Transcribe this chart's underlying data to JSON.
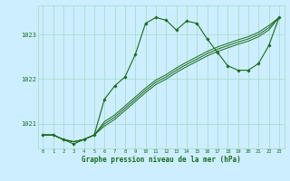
{
  "background_color": "#cceeff",
  "grid_color": "#aaddcc",
  "line_color": "#1a6b1a",
  "xlabel": "Graphe pression niveau de la mer (hPa)",
  "xlabel_color": "#1a6b1a",
  "ylabel_ticks": [
    1021,
    1022,
    1023
  ],
  "xlim": [
    -0.5,
    23.5
  ],
  "ylim": [
    1020.45,
    1023.65
  ],
  "x_ticks": [
    0,
    1,
    2,
    3,
    4,
    5,
    6,
    7,
    8,
    9,
    10,
    11,
    12,
    13,
    14,
    15,
    16,
    17,
    18,
    19,
    20,
    21,
    22,
    23
  ],
  "line1_x": [
    0,
    1,
    2,
    3,
    4,
    5,
    6,
    7,
    8,
    9,
    10,
    11,
    12,
    13,
    14,
    15,
    16,
    17,
    18,
    19,
    20,
    21,
    22,
    23
  ],
  "line1_y": [
    1020.75,
    1020.75,
    1020.65,
    1020.55,
    1020.65,
    1020.75,
    1021.55,
    1021.85,
    1022.05,
    1022.55,
    1023.25,
    1023.38,
    1023.32,
    1023.1,
    1023.3,
    1023.25,
    1022.9,
    1022.6,
    1022.3,
    1022.2,
    1022.2,
    1022.35,
    1022.75,
    1023.38
  ],
  "line2_x": [
    0,
    1,
    2,
    3,
    4,
    5,
    6,
    7,
    8,
    9,
    10,
    11,
    12,
    13,
    14,
    15,
    16,
    17,
    18,
    19,
    20,
    21,
    22,
    23
  ],
  "line2_y": [
    1020.75,
    1020.75,
    1020.65,
    1020.6,
    1020.65,
    1020.75,
    1020.95,
    1021.1,
    1021.3,
    1021.5,
    1021.7,
    1021.88,
    1022.0,
    1022.15,
    1022.28,
    1022.4,
    1022.52,
    1022.62,
    1022.7,
    1022.78,
    1022.85,
    1022.95,
    1023.1,
    1023.38
  ],
  "line3_x": [
    0,
    1,
    2,
    3,
    4,
    5,
    6,
    7,
    8,
    9,
    10,
    11,
    12,
    13,
    14,
    15,
    16,
    17,
    18,
    19,
    20,
    21,
    22,
    23
  ],
  "line3_y": [
    1020.75,
    1020.75,
    1020.65,
    1020.6,
    1020.65,
    1020.75,
    1021.0,
    1021.15,
    1021.35,
    1021.55,
    1021.75,
    1021.93,
    1022.05,
    1022.2,
    1022.33,
    1022.45,
    1022.57,
    1022.67,
    1022.75,
    1022.83,
    1022.9,
    1023.0,
    1023.15,
    1023.38
  ],
  "line4_x": [
    0,
    1,
    2,
    3,
    4,
    5,
    6,
    7,
    8,
    9,
    10,
    11,
    12,
    13,
    14,
    15,
    16,
    17,
    18,
    19,
    20,
    21,
    22,
    23
  ],
  "line4_y": [
    1020.75,
    1020.75,
    1020.65,
    1020.6,
    1020.65,
    1020.75,
    1021.05,
    1021.2,
    1021.4,
    1021.6,
    1021.8,
    1021.98,
    1022.1,
    1022.25,
    1022.38,
    1022.5,
    1022.62,
    1022.72,
    1022.8,
    1022.88,
    1022.95,
    1023.05,
    1023.2,
    1023.38
  ]
}
